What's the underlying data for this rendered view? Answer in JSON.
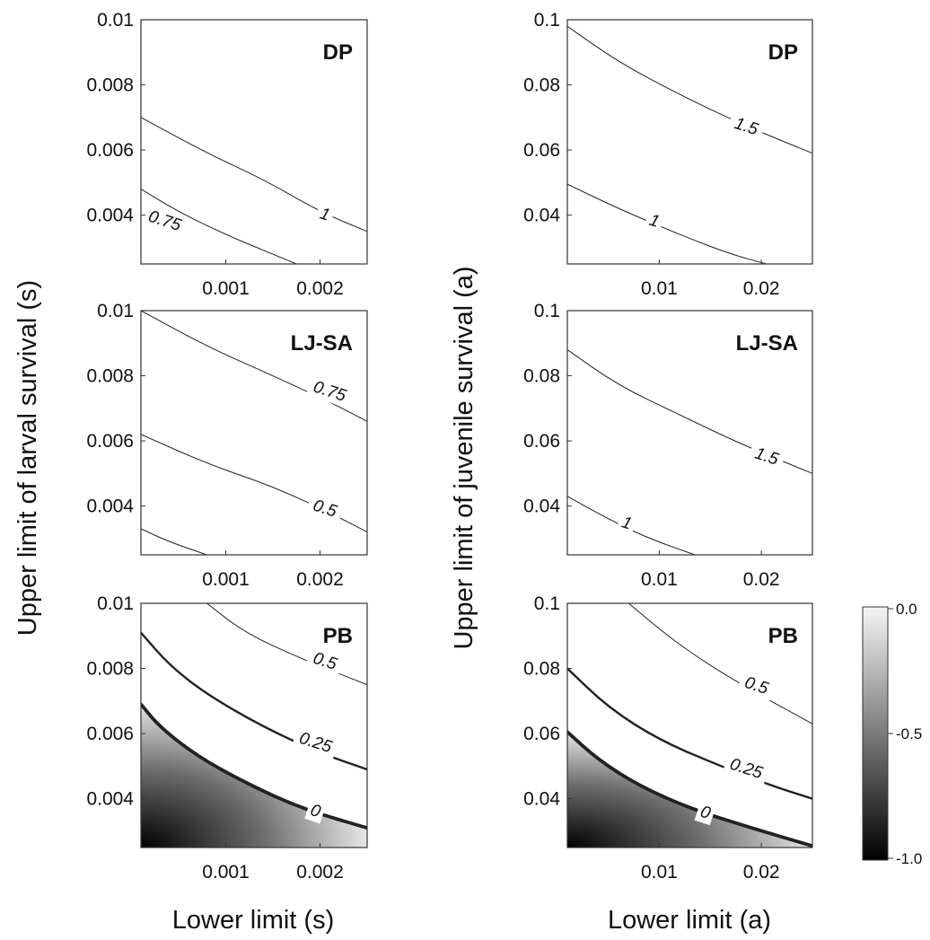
{
  "chart_data": [
    {
      "type": "contour",
      "title": "DP",
      "panel": "left-top",
      "xlabel": "Lower limit (s)",
      "ylabel": "Upper limit of larval survival (s)",
      "xlim": [
        0.0001,
        0.0025
      ],
      "ylim": [
        0.0025,
        0.01
      ],
      "xticks": [
        "0.001",
        "0.002"
      ],
      "xtickvals": [
        0.001,
        0.002
      ],
      "yticks": [
        "0.01",
        "0.008",
        "0.006",
        "0.004"
      ],
      "ytickvals": [
        0.01,
        0.008,
        0.006,
        0.004
      ],
      "contours": [
        {
          "label": "1",
          "weight": "thin",
          "x": [
            0.0001,
            0.0008,
            0.0014,
            0.002,
            0.0025
          ],
          "y": [
            0.007,
            0.0059,
            0.0051,
            0.0041,
            0.0035
          ],
          "label_at": [
            0.00205,
            0.004
          ]
        },
        {
          "label": "0.75",
          "weight": "thin",
          "x": [
            0.0001,
            0.0005,
            0.001,
            0.0015,
            0.00175
          ],
          "y": [
            0.0048,
            0.0041,
            0.0034,
            0.0028,
            0.0025
          ],
          "label_at": [
            0.00035,
            0.0038
          ]
        }
      ]
    },
    {
      "type": "contour",
      "title": "LJ-SA",
      "panel": "left-middle",
      "xlim": [
        0.0001,
        0.0025
      ],
      "ylim": [
        0.0025,
        0.01
      ],
      "xticks": [
        "0.001",
        "0.002"
      ],
      "xtickvals": [
        0.001,
        0.002
      ],
      "yticks": [
        "0.01",
        "0.008",
        "0.006",
        "0.004"
      ],
      "ytickvals": [
        0.01,
        0.008,
        0.006,
        0.004
      ],
      "contours": [
        {
          "label": "0.75",
          "weight": "thin",
          "x": [
            0.0001,
            0.0008,
            0.0015,
            0.0021,
            0.0025
          ],
          "y": [
            0.01,
            0.0089,
            0.008,
            0.0072,
            0.0066
          ],
          "label_at": [
            0.0021,
            0.0075
          ]
        },
        {
          "label": "0.5",
          "weight": "thin",
          "x": [
            0.0001,
            0.0008,
            0.0015,
            0.0021,
            0.0025
          ],
          "y": [
            0.0062,
            0.0053,
            0.0046,
            0.0038,
            0.0032
          ],
          "label_at": [
            0.00205,
            0.0039
          ]
        },
        {
          "label": "",
          "weight": "thin",
          "x": [
            0.0001,
            0.0004,
            0.0008
          ],
          "y": [
            0.0033,
            0.0029,
            0.0025
          ]
        }
      ]
    },
    {
      "type": "contour",
      "title": "PB",
      "panel": "left-bottom",
      "xlabel": "Lower limit (s)",
      "xlim": [
        0.0001,
        0.0025
      ],
      "ylim": [
        0.0025,
        0.01
      ],
      "xticks": [
        "0.001",
        "0.002"
      ],
      "xtickvals": [
        0.001,
        0.002
      ],
      "yticks": [
        "0.01",
        "0.008",
        "0.006",
        "0.004"
      ],
      "ytickvals": [
        0.01,
        0.008,
        0.006,
        0.004
      ],
      "shaded_below": "0",
      "contours": [
        {
          "label": "0.5",
          "weight": "thin",
          "x": [
            0.0008,
            0.0012,
            0.0018,
            0.0025
          ],
          "y": [
            0.01,
            0.0091,
            0.0083,
            0.0075
          ],
          "label_at": [
            0.00205,
            0.0082
          ]
        },
        {
          "label": "0.25",
          "weight": "medium",
          "x": [
            0.0001,
            0.0004,
            0.0008,
            0.0014,
            0.002,
            0.0025
          ],
          "y": [
            0.0091,
            0.0081,
            0.0072,
            0.0062,
            0.0054,
            0.0049
          ],
          "label_at": [
            0.00195,
            0.0057
          ]
        },
        {
          "label": "0",
          "weight": "thick",
          "x": [
            0.0001,
            0.0003,
            0.0007,
            0.0012,
            0.0018,
            0.0025
          ],
          "y": [
            0.0069,
            0.0062,
            0.0053,
            0.0045,
            0.0037,
            0.0031
          ],
          "label_at": [
            0.00195,
            0.0036
          ]
        }
      ]
    },
    {
      "type": "contour",
      "title": "DP",
      "panel": "right-top",
      "xlabel": "Lower limit (a)",
      "ylabel": "Upper limit of juvenile survival (a)",
      "xlim": [
        0.001,
        0.025
      ],
      "ylim": [
        0.025,
        0.1
      ],
      "xticks": [
        "0.01",
        "0.02"
      ],
      "xtickvals": [
        0.01,
        0.02
      ],
      "yticks": [
        "0.1",
        "0.08",
        "0.06",
        "0.04"
      ],
      "ytickvals": [
        0.1,
        0.08,
        0.06,
        0.04
      ],
      "contours": [
        {
          "label": "1.5",
          "weight": "thin",
          "x": [
            0.001,
            0.006,
            0.012,
            0.018,
            0.025
          ],
          "y": [
            0.098,
            0.087,
            0.077,
            0.068,
            0.059
          ],
          "label_at": [
            0.0185,
            0.067
          ]
        },
        {
          "label": "1",
          "weight": "thin",
          "x": [
            0.001,
            0.006,
            0.012,
            0.017,
            0.0205
          ],
          "y": [
            0.0495,
            0.042,
            0.034,
            0.028,
            0.025
          ],
          "label_at": [
            0.0095,
            0.038
          ]
        }
      ]
    },
    {
      "type": "contour",
      "title": "LJ-SA",
      "panel": "right-middle",
      "xlim": [
        0.001,
        0.025
      ],
      "ylim": [
        0.025,
        0.1
      ],
      "xticks": [
        "0.01",
        "0.02"
      ],
      "xtickvals": [
        0.01,
        0.02
      ],
      "yticks": [
        "0.1",
        "0.08",
        "0.06",
        "0.04"
      ],
      "ytickvals": [
        0.1,
        0.08,
        0.06,
        0.04
      ],
      "contours": [
        {
          "label": "1.5",
          "weight": "thin",
          "x": [
            0.001,
            0.006,
            0.012,
            0.018,
            0.025
          ],
          "y": [
            0.088,
            0.077,
            0.068,
            0.059,
            0.05
          ],
          "label_at": [
            0.0205,
            0.055
          ]
        },
        {
          "label": "1",
          "weight": "thin",
          "x": [
            0.001,
            0.005,
            0.009,
            0.0135
          ],
          "y": [
            0.043,
            0.036,
            0.03,
            0.025
          ],
          "label_at": [
            0.0068,
            0.0345
          ]
        }
      ]
    },
    {
      "type": "contour",
      "title": "PB",
      "panel": "right-bottom",
      "xlabel": "Lower limit (a)",
      "xlim": [
        0.001,
        0.025
      ],
      "ylim": [
        0.025,
        0.1
      ],
      "xticks": [
        "0.01",
        "0.02"
      ],
      "xtickvals": [
        0.01,
        0.02
      ],
      "yticks": [
        "0.1",
        "0.08",
        "0.06",
        "0.04"
      ],
      "ytickvals": [
        0.1,
        0.08,
        0.06,
        0.04
      ],
      "shaded_below": "0",
      "contours": [
        {
          "label": "0.5",
          "weight": "thin",
          "x": [
            0.007,
            0.012,
            0.018,
            0.025
          ],
          "y": [
            0.1,
            0.087,
            0.075,
            0.063
          ],
          "label_at": [
            0.0195,
            0.0745
          ]
        },
        {
          "label": "0.25",
          "weight": "medium",
          "x": [
            0.001,
            0.005,
            0.01,
            0.016,
            0.021,
            0.025
          ],
          "y": [
            0.08,
            0.068,
            0.058,
            0.05,
            0.044,
            0.04
          ],
          "label_at": [
            0.0185,
            0.049
          ]
        },
        {
          "label": "0",
          "weight": "thick",
          "x": [
            0.001,
            0.004,
            0.008,
            0.013,
            0.019,
            0.025
          ],
          "y": [
            0.0605,
            0.052,
            0.044,
            0.037,
            0.031,
            0.0255
          ],
          "label_at": [
            0.0145,
            0.0355
          ]
        }
      ]
    }
  ],
  "figure": {
    "left_ylabel": "Upper limit of larval survival (s)",
    "right_ylabel": "Upper limit of juvenile survival (a)",
    "left_xlabel": "Lower limit (s)",
    "right_xlabel": "Lower limit (a)",
    "colorbar": {
      "ticks": [
        "0.0",
        "-0.5",
        "-1.0"
      ],
      "tickvals": [
        0.0,
        -0.5,
        -1.0
      ],
      "range": [
        -1.0,
        0.0
      ],
      "colors": [
        "#f2f2f2",
        "#000000"
      ]
    }
  }
}
